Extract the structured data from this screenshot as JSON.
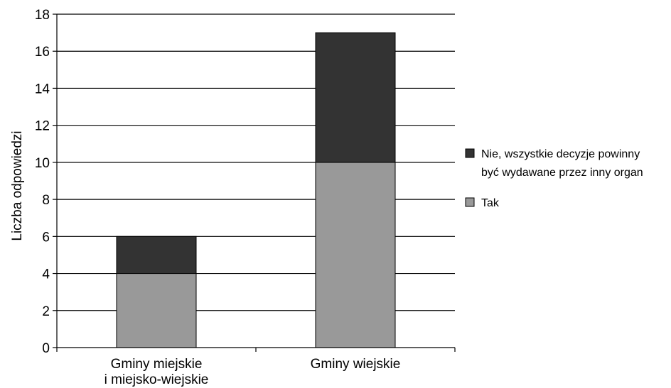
{
  "chart_data": {
    "type": "bar",
    "stacked": true,
    "categories": [
      "Gminy miejskie i miejsko-wiejskie",
      "Gminy wiejskie"
    ],
    "category_lines": [
      [
        "Gminy miejskie",
        "i miejsko-wiejskie"
      ],
      [
        "Gminy wiejskie"
      ]
    ],
    "series": [
      {
        "name": "Tak",
        "values": [
          4,
          10
        ],
        "color": "#999999"
      },
      {
        "name": "Nie, wszystkie decyzje powinny być wydawane przez inny organ",
        "name_lines": [
          "Nie, wszystkie decyzje powinny",
          "być wydawane przez inny organ"
        ],
        "values": [
          2,
          7
        ],
        "color": "#333333"
      }
    ],
    "legend_order": [
      1,
      0
    ],
    "title": "",
    "xlabel": "",
    "ylabel": "Liczba odpowiedzi",
    "ylim": [
      0,
      18
    ],
    "yticks": [
      0,
      2,
      4,
      6,
      8,
      10,
      12,
      14,
      16,
      18
    ],
    "grid": true,
    "legend_position": "right"
  }
}
